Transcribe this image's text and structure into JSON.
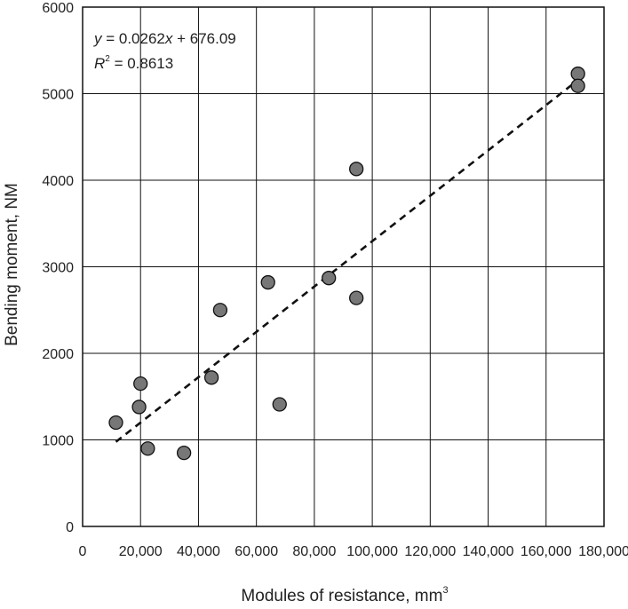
{
  "chart_data": {
    "type": "scatter",
    "xlabel": "Modules of resistance, mm",
    "xlabel_sup": "3",
    "ylabel": "Bending moment, NM",
    "xlim": [
      0,
      180000
    ],
    "ylim": [
      0,
      6000
    ],
    "x_ticks": [
      0,
      20000,
      40000,
      60000,
      80000,
      100000,
      120000,
      140000,
      160000,
      180000
    ],
    "x_tick_labels": [
      "0",
      "20,000",
      "40,000",
      "60,000",
      "80,000",
      "100,000",
      "120,000",
      "140,000",
      "160,000",
      "180,000"
    ],
    "y_ticks": [
      0,
      1000,
      2000,
      3000,
      4000,
      5000,
      6000
    ],
    "y_tick_labels": [
      "0",
      "1000",
      "2000",
      "3000",
      "4000",
      "5000",
      "6000"
    ],
    "grid": true,
    "marker_color": "#777777",
    "points": [
      {
        "x": 11500,
        "y": 1200
      },
      {
        "x": 19500,
        "y": 1380
      },
      {
        "x": 20000,
        "y": 1650
      },
      {
        "x": 22500,
        "y": 900
      },
      {
        "x": 35000,
        "y": 850
      },
      {
        "x": 44500,
        "y": 1720
      },
      {
        "x": 47500,
        "y": 2500
      },
      {
        "x": 64000,
        "y": 2820
      },
      {
        "x": 68000,
        "y": 1410
      },
      {
        "x": 85000,
        "y": 2870
      },
      {
        "x": 94500,
        "y": 4130
      },
      {
        "x": 94500,
        "y": 2640
      },
      {
        "x": 171000,
        "y": 5230
      },
      {
        "x": 171000,
        "y": 5090
      }
    ],
    "trendline": {
      "style": "dashed",
      "slope": 0.0262,
      "intercept": 676.09,
      "x_range": [
        11500,
        171000
      ]
    },
    "equation": {
      "y_var": "y",
      "eq_body": " = 0.0262",
      "x_var": "x",
      "eq_tail": " + 676.09",
      "r_var": "R",
      "r_sup": "2",
      "r_value": " = 0.8613"
    }
  }
}
